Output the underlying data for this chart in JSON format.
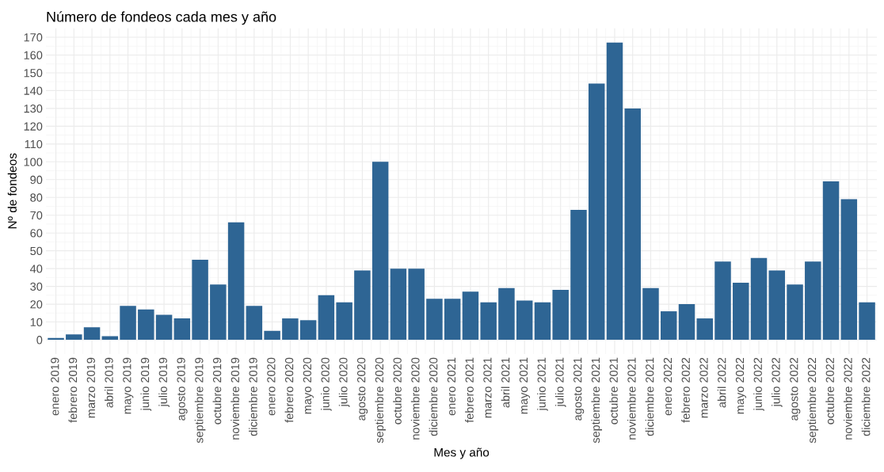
{
  "chart_data": {
    "type": "bar",
    "title": "Número de fondeos cada mes y año",
    "xlabel": "Mes y año",
    "ylabel": "Nº de fondeos",
    "categories": [
      "enero 2019",
      "febrero 2019",
      "marzo 2019",
      "abril 2019",
      "mayo 2019",
      "junio 2019",
      "julio 2019",
      "agosto 2019",
      "septiembre 2019",
      "octubre 2019",
      "noviembre 2019",
      "diciembre 2019",
      "enero 2020",
      "febrero 2020",
      "mayo 2020",
      "junio 2020",
      "julio 2020",
      "agosto 2020",
      "septiembre 2020",
      "octubre 2020",
      "noviembre 2020",
      "diciembre 2020",
      "enero 2021",
      "febrero 2021",
      "marzo 2021",
      "abril 2021",
      "mayo 2021",
      "junio 2021",
      "julio 2021",
      "agosto 2021",
      "septiembre 2021",
      "octubre 2021",
      "noviembre 2021",
      "diciembre 2021",
      "enero 2022",
      "febrero 2022",
      "marzo 2022",
      "abril 2022",
      "mayo 2022",
      "junio 2022",
      "julio 2022",
      "agosto 2022",
      "septiembre 2022",
      "octubre 2022",
      "noviembre 2022",
      "diciembre 2022"
    ],
    "values": [
      1,
      3,
      7,
      2,
      19,
      17,
      14,
      12,
      45,
      31,
      66,
      19,
      5,
      12,
      11,
      25,
      21,
      39,
      100,
      40,
      40,
      23,
      23,
      27,
      21,
      29,
      22,
      21,
      28,
      73,
      144,
      167,
      130,
      29,
      16,
      20,
      12,
      44,
      32,
      46,
      39,
      31,
      44,
      89,
      79,
      21
    ],
    "color": "#2e6594",
    "ylim": [
      -8,
      175
    ],
    "yticks": [
      0,
      10,
      20,
      30,
      40,
      50,
      60,
      70,
      80,
      90,
      100,
      110,
      120,
      130,
      140,
      150,
      160,
      170
    ],
    "grid": true
  }
}
